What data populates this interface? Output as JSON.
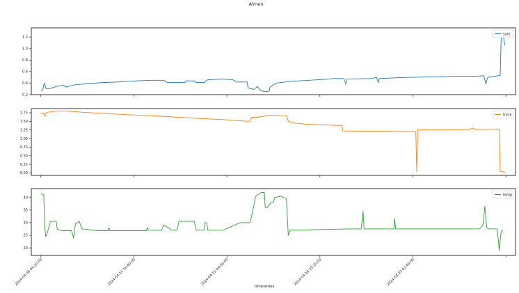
{
  "figure": {
    "title": "Almen",
    "xlabel": "timeseries"
  },
  "chart_data": [
    {
      "type": "line",
      "title": "",
      "xlabel": "",
      "ylabel": "",
      "series": [
        {
          "name": "syre",
          "color": "#1f77b4"
        }
      ],
      "ylim": [
        0.2,
        1.36
      ],
      "yticks": [
        0.2,
        0.4,
        0.6,
        0.8,
        1.0,
        1.2
      ],
      "yticklabels": [
        "0.2",
        "0.4",
        "0.6",
        "0.8",
        "1.0",
        "1.2"
      ],
      "points": [
        [
          0,
          0.28
        ],
        [
          2,
          0.28
        ],
        [
          3,
          0.37
        ],
        [
          4,
          0.4
        ],
        [
          5,
          0.31
        ],
        [
          8,
          0.3
        ],
        [
          10,
          0.31
        ],
        [
          14,
          0.33
        ],
        [
          18,
          0.35
        ],
        [
          24,
          0.36
        ],
        [
          26,
          0.33
        ],
        [
          28,
          0.34
        ],
        [
          35,
          0.37
        ],
        [
          48,
          0.39
        ],
        [
          65,
          0.41
        ],
        [
          80,
          0.42
        ],
        [
          100,
          0.44
        ],
        [
          115,
          0.45
        ],
        [
          128,
          0.45
        ],
        [
          132,
          0.41
        ],
        [
          150,
          0.41
        ],
        [
          152,
          0.44
        ],
        [
          160,
          0.44
        ],
        [
          162,
          0.41
        ],
        [
          170,
          0.41
        ],
        [
          174,
          0.46
        ],
        [
          190,
          0.47
        ],
        [
          200,
          0.46
        ],
        [
          204,
          0.42
        ],
        [
          215,
          0.42
        ],
        [
          216,
          0.32
        ],
        [
          222,
          0.29
        ],
        [
          226,
          0.34
        ],
        [
          229,
          0.27
        ],
        [
          234,
          0.25
        ],
        [
          238,
          0.26
        ],
        [
          239,
          0.33
        ],
        [
          245,
          0.4
        ],
        [
          260,
          0.43
        ],
        [
          280,
          0.45
        ],
        [
          300,
          0.47
        ],
        [
          305,
          0.48
        ],
        [
          316,
          0.48
        ],
        [
          318,
          0.38
        ],
        [
          319,
          0.47
        ],
        [
          345,
          0.48
        ],
        [
          350,
          0.5
        ],
        [
          352,
          0.41
        ],
        [
          353,
          0.48
        ],
        [
          380,
          0.5
        ],
        [
          415,
          0.51
        ],
        [
          430,
          0.52
        ],
        [
          445,
          0.52
        ],
        [
          455,
          0.52
        ],
        [
          462,
          0.53
        ],
        [
          464,
          0.39
        ],
        [
          466,
          0.5
        ],
        [
          477,
          0.53
        ],
        [
          479,
          0.53
        ],
        [
          480,
          1.15
        ],
        [
          481,
          1.3
        ],
        [
          482,
          1.24
        ],
        [
          484,
          1.05
        ]
      ]
    },
    {
      "type": "line",
      "title": "",
      "xlabel": "",
      "ylabel": "",
      "series": [
        {
          "name": "tryck",
          "color": "#ff7f0e"
        }
      ],
      "ylim": [
        -0.07,
        1.87
      ],
      "yticks": [
        0.0,
        0.25,
        0.5,
        0.75,
        1.0,
        1.25,
        1.5,
        1.75
      ],
      "yticklabels": [
        "0.00",
        "0.25",
        "0.50",
        "0.75",
        "1.00",
        "1.25",
        "1.50",
        "1.75"
      ],
      "points": [
        [
          0,
          1.74
        ],
        [
          3,
          1.74
        ],
        [
          4,
          1.65
        ],
        [
          6,
          1.76
        ],
        [
          12,
          1.78
        ],
        [
          20,
          1.8
        ],
        [
          30,
          1.79
        ],
        [
          45,
          1.76
        ],
        [
          70,
          1.72
        ],
        [
          100,
          1.68
        ],
        [
          130,
          1.64
        ],
        [
          160,
          1.59
        ],
        [
          190,
          1.55
        ],
        [
          210,
          1.51
        ],
        [
          218,
          1.5
        ],
        [
          220,
          1.62
        ],
        [
          226,
          1.62
        ],
        [
          240,
          1.68
        ],
        [
          256,
          1.66
        ],
        [
          258,
          1.5
        ],
        [
          262,
          1.46
        ],
        [
          275,
          1.42
        ],
        [
          300,
          1.39
        ],
        [
          314,
          1.38
        ],
        [
          315,
          1.22
        ],
        [
          360,
          1.21
        ],
        [
          391,
          1.2
        ],
        [
          392,
          0.03
        ],
        [
          393,
          1.25
        ],
        [
          420,
          1.25
        ],
        [
          447,
          1.26
        ],
        [
          450,
          1.31
        ],
        [
          453,
          1.26
        ],
        [
          478,
          1.27
        ],
        [
          479,
          0.05
        ],
        [
          485,
          0.02
        ]
      ]
    },
    {
      "type": "line",
      "title": "",
      "xlabel": "",
      "ylabel": "",
      "series": [
        {
          "name": "temp",
          "color": "#2ca02c"
        }
      ],
      "ylim": [
        17.0,
        43.5
      ],
      "yticks": [
        20,
        25,
        30,
        35,
        40
      ],
      "yticklabels": [
        "20",
        "25",
        "30",
        "35",
        "40"
      ],
      "xticks": [
        0,
        97,
        194,
        291,
        388,
        485
      ],
      "xticklabels": [
        "2024-04-08 05:20:00",
        "2024-04-11 16:40:00",
        "2024-04-15 04:00:00",
        "2024-04-18 15:20:00",
        "2024-04-22 02:40:00",
        ""
      ],
      "points": [
        [
          0,
          41.5
        ],
        [
          3,
          41.0
        ],
        [
          4,
          28.0
        ],
        [
          5,
          24.5
        ],
        [
          6,
          25.0
        ],
        [
          10,
          30.5
        ],
        [
          16,
          30.5
        ],
        [
          17,
          27.5
        ],
        [
          22,
          26.8
        ],
        [
          32,
          26.8
        ],
        [
          34,
          24.0
        ],
        [
          36,
          29.5
        ],
        [
          40,
          30.5
        ],
        [
          43,
          27.5
        ],
        [
          60,
          26.8
        ],
        [
          70,
          26.8
        ],
        [
          71,
          28.0
        ],
        [
          72,
          26.8
        ],
        [
          110,
          26.8
        ],
        [
          111,
          28.0
        ],
        [
          112,
          27.0
        ],
        [
          126,
          27.0
        ],
        [
          128,
          29.0
        ],
        [
          133,
          28.0
        ],
        [
          136,
          27.0
        ],
        [
          142,
          27.0
        ],
        [
          144,
          30.5
        ],
        [
          160,
          30.5
        ],
        [
          162,
          27.0
        ],
        [
          170,
          27.0
        ],
        [
          171,
          30.0
        ],
        [
          173,
          30.0
        ],
        [
          174,
          27.0
        ],
        [
          190,
          27.0
        ],
        [
          208,
          30.0
        ],
        [
          218,
          30.0
        ],
        [
          220,
          33.0
        ],
        [
          224,
          40.5
        ],
        [
          230,
          42.0
        ],
        [
          233,
          42.0
        ],
        [
          234,
          36.0
        ],
        [
          236,
          36.0
        ],
        [
          240,
          38.0
        ],
        [
          242,
          38.0
        ],
        [
          244,
          40.0
        ],
        [
          250,
          40.5
        ],
        [
          256,
          39.5
        ],
        [
          258,
          25.0
        ],
        [
          260,
          27.0
        ],
        [
          320,
          27.5
        ],
        [
          334,
          27.5
        ],
        [
          336,
          34.5
        ],
        [
          337,
          27.5
        ],
        [
          368,
          27.5
        ],
        [
          369,
          31.5
        ],
        [
          370,
          27.5
        ],
        [
          430,
          27.5
        ],
        [
          457,
          27.5
        ],
        [
          460,
          28.5
        ],
        [
          461,
          29.0
        ],
        [
          463,
          36.5
        ],
        [
          465,
          28.0
        ],
        [
          467,
          27.5
        ],
        [
          476,
          27.5
        ],
        [
          478,
          19.0
        ],
        [
          480,
          26.5
        ],
        [
          482,
          27.0
        ]
      ]
    }
  ]
}
